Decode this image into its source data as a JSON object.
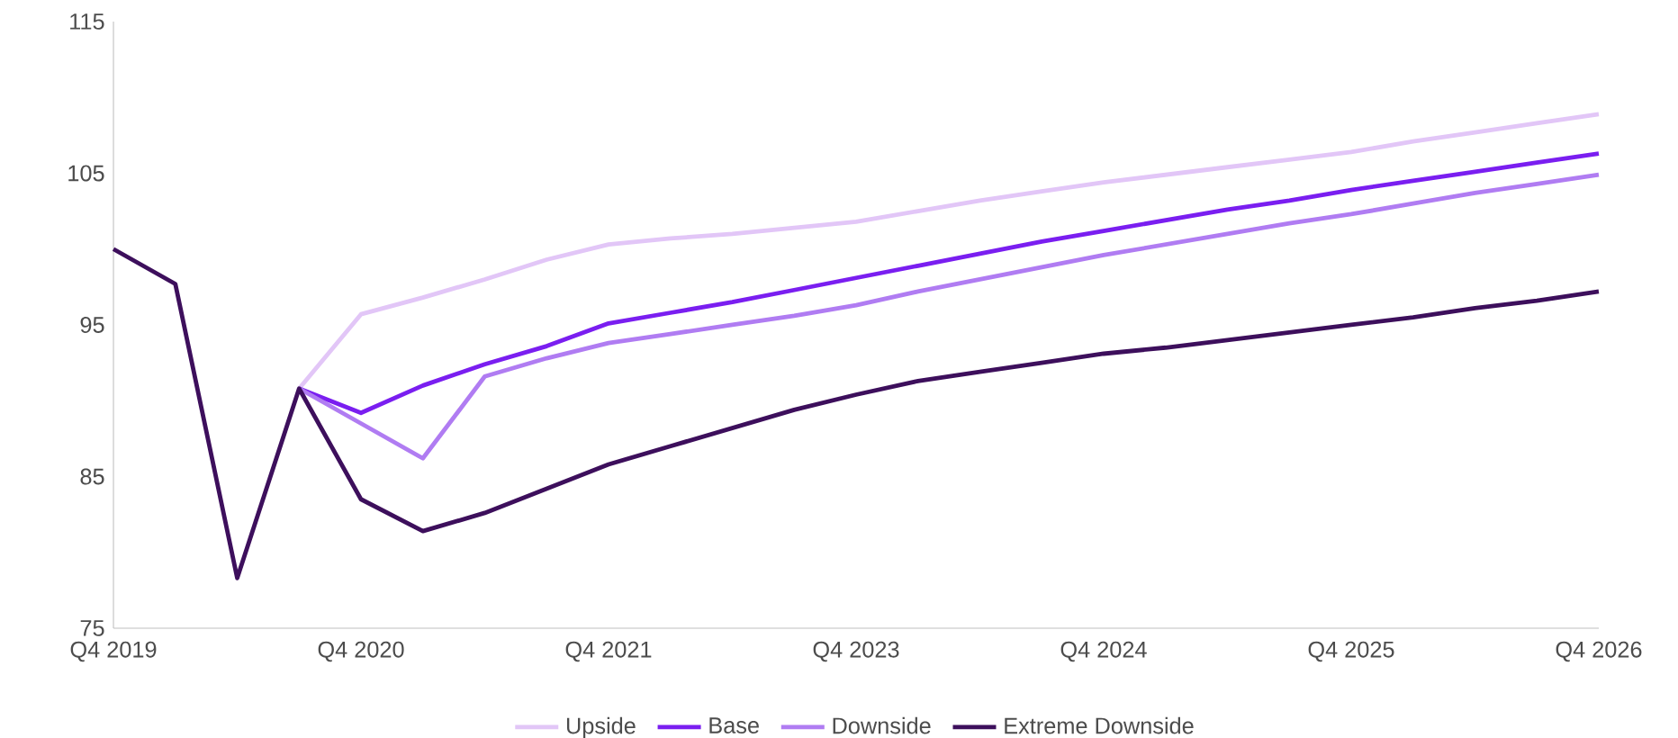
{
  "chart_data": {
    "type": "line",
    "categories": [
      "Q4 2019",
      null,
      null,
      null,
      "Q4 2020",
      null,
      null,
      null,
      "Q4 2021",
      null,
      null,
      null,
      "Q4 2023",
      null,
      null,
      null,
      "Q4 2024",
      null,
      null,
      null,
      "Q4 2025",
      null,
      null,
      null,
      "Q4 2026"
    ],
    "series": [
      {
        "name": "Upside",
        "color": "#e2c6f7",
        "values": [
          null,
          null,
          null,
          90.8,
          95.7,
          96.8,
          98.0,
          99.3,
          100.3,
          100.7,
          101.0,
          101.4,
          101.8,
          102.5,
          103.2,
          103.8,
          104.4,
          104.9,
          105.4,
          105.9,
          106.4,
          107.1,
          107.7,
          108.3,
          108.9
        ]
      },
      {
        "name": "Base",
        "color": "#7a1ef0",
        "values": [
          null,
          null,
          null,
          90.8,
          89.2,
          91.0,
          92.4,
          93.6,
          95.1,
          95.8,
          96.5,
          97.3,
          98.1,
          98.9,
          99.7,
          100.5,
          101.2,
          101.9,
          102.6,
          103.2,
          103.9,
          104.5,
          105.1,
          105.7,
          106.3
        ]
      },
      {
        "name": "Downside",
        "color": "#b07cf2",
        "values": [
          null,
          null,
          null,
          90.8,
          88.5,
          86.2,
          91.6,
          92.8,
          93.8,
          94.4,
          95.0,
          95.6,
          96.3,
          97.2,
          98.0,
          98.8,
          99.6,
          100.3,
          101.0,
          101.7,
          102.3,
          103.0,
          103.7,
          104.3,
          104.9
        ]
      },
      {
        "name": "Extreme Downside",
        "color": "#3d0f5c",
        "values": [
          100.0,
          97.7,
          78.3,
          90.8,
          83.5,
          81.4,
          82.6,
          84.2,
          85.8,
          87.0,
          88.2,
          89.4,
          90.4,
          91.3,
          91.9,
          92.5,
          93.1,
          93.5,
          94.0,
          94.5,
          95.0,
          95.5,
          96.1,
          96.6,
          97.2
        ]
      }
    ],
    "ylim": [
      75,
      115
    ],
    "yticks": [
      75,
      85,
      95,
      105,
      115
    ],
    "grid": false,
    "legend": "bottom"
  }
}
